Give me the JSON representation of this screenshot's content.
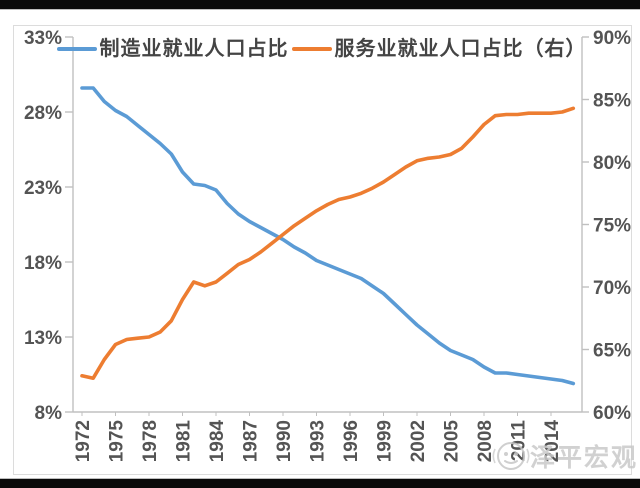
{
  "page": {
    "background": "#ffffff",
    "top_bar_color": "#0a0a0a",
    "bottom_bar_color": "#0a0a0a"
  },
  "watermark": {
    "text": "泽平宏观",
    "icon": "zeping-logo-icon",
    "color": "#c9c9c9"
  },
  "chart_data": {
    "type": "line",
    "title": "",
    "legend_position": "top",
    "grid": false,
    "x": [
      1972,
      1973,
      1974,
      1975,
      1976,
      1977,
      1978,
      1979,
      1980,
      1981,
      1982,
      1983,
      1984,
      1985,
      1986,
      1987,
      1988,
      1989,
      1990,
      1991,
      1992,
      1993,
      1994,
      1995,
      1996,
      1997,
      1998,
      1999,
      2000,
      2001,
      2002,
      2003,
      2004,
      2005,
      2006,
      2007,
      2008,
      2009,
      2010,
      2011,
      2012,
      2013,
      2014,
      2015,
      2016
    ],
    "x_tick_labels": [
      "1972",
      "1975",
      "1978",
      "1981",
      "1984",
      "1987",
      "1990",
      "1993",
      "1996",
      "1999",
      "2002",
      "2005",
      "2008",
      "2011",
      "2014"
    ],
    "series": [
      {
        "name": "制造业就业人口占比",
        "axis": "left",
        "color": "#5B9BD5",
        "values": [
          29.6,
          29.6,
          28.7,
          28.1,
          27.7,
          27.1,
          26.5,
          25.9,
          25.2,
          24.0,
          23.2,
          23.1,
          22.8,
          21.9,
          21.2,
          20.7,
          20.3,
          19.9,
          19.5,
          19.0,
          18.6,
          18.1,
          17.8,
          17.5,
          17.2,
          16.9,
          16.4,
          15.9,
          15.2,
          14.5,
          13.8,
          13.2,
          12.6,
          12.1,
          11.8,
          11.5,
          11.0,
          10.6,
          10.6,
          10.5,
          10.4,
          10.3,
          10.2,
          10.1,
          9.9
        ]
      },
      {
        "name": "服务业就业人口占比（右）",
        "axis": "right",
        "color": "#ED7D31",
        "values": [
          62.9,
          62.7,
          64.2,
          65.4,
          65.8,
          65.9,
          66.0,
          66.4,
          67.3,
          69.0,
          70.4,
          70.1,
          70.4,
          71.1,
          71.8,
          72.2,
          72.8,
          73.5,
          74.2,
          74.9,
          75.5,
          76.1,
          76.6,
          77.0,
          77.2,
          77.5,
          77.9,
          78.4,
          79.0,
          79.6,
          80.1,
          80.3,
          80.4,
          80.6,
          81.1,
          82.0,
          83.0,
          83.7,
          83.8,
          83.8,
          83.9,
          83.9,
          83.9,
          84.0,
          84.3
        ]
      }
    ],
    "left_axis": {
      "min": 8,
      "max": 33,
      "tick_labels": [
        "33%",
        "28%",
        "23%",
        "18%",
        "13%",
        "8%"
      ],
      "tick_values": [
        33,
        28,
        23,
        18,
        13,
        8
      ]
    },
    "right_axis": {
      "min": 60,
      "max": 90,
      "tick_labels": [
        "90%",
        "85%",
        "80%",
        "75%",
        "70%",
        "65%",
        "60%"
      ],
      "tick_values": [
        90,
        85,
        80,
        75,
        70,
        65,
        60
      ]
    },
    "axis_text_color": "#545454",
    "axis_line_color": "#c0c0c0"
  }
}
